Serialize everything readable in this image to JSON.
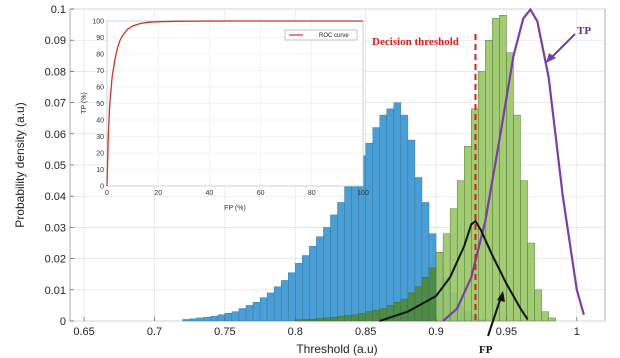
{
  "chart_data": {
    "type": "bar",
    "title": "",
    "xlabel": "Threshold (a.u)",
    "ylabel": "Probability density (a.u)",
    "xlim": [
      0.64,
      1.02
    ],
    "ylim": [
      0,
      0.1
    ],
    "x_ticks": [
      "0.65",
      "0.7",
      "0.75",
      "0.8",
      "0.85",
      "0.9",
      "0.95",
      "1"
    ],
    "y_ticks": [
      "0",
      "0.01",
      "0.02",
      "0.03",
      "0.04",
      "0.05",
      "0.06",
      "0.07",
      "0.08",
      "0.09",
      "0.1"
    ],
    "grid": true,
    "bin_width": 0.005,
    "colors": {
      "blue_hist": "#4a9ed6",
      "green_hist": "#9bc768",
      "overlap": "#4e8a3e",
      "black_curve": "#111111",
      "purple_curve": "#7a3fa6",
      "threshold": "#d81e1e",
      "roc": "#c0392b"
    },
    "series": [
      {
        "bins_start": 0.72,
        "values": [
          0.0005,
          0.0007,
          0.001,
          0.0012,
          0.0015,
          0.002,
          0.0025,
          0.003,
          0.004,
          0.005,
          0.006,
          0.0075,
          0.009,
          0.011,
          0.013,
          0.0155,
          0.0185,
          0.021,
          0.024,
          0.027,
          0.03,
          0.034,
          0.038,
          0.043,
          0.048,
          0.053,
          0.057,
          0.062,
          0.066,
          0.068,
          0.07,
          0.066,
          0.058,
          0.046,
          0.038,
          0.028,
          0.022,
          0.014,
          0.009,
          0.005,
          0.003,
          0.0015,
          0.0005
        ]
      },
      {
        "bins_start": 0.8,
        "values": [
          0.0004,
          0.0005,
          0.0006,
          0.0008,
          0.001,
          0.0012,
          0.0015,
          0.0018,
          0.002,
          0.0025,
          0.003,
          0.0035,
          0.004,
          0.005,
          0.006,
          0.007,
          0.009,
          0.011,
          0.014,
          0.017,
          0.022,
          0.028,
          0.036,
          0.045,
          0.056,
          0.068,
          0.08,
          0.09,
          0.097,
          0.098,
          0.086,
          0.066,
          0.045,
          0.025,
          0.01,
          0.003,
          0.001
        ]
      }
    ],
    "black_curve": {
      "x": [
        0.86,
        0.88,
        0.9,
        0.91,
        0.92,
        0.925,
        0.928,
        0.932,
        0.94,
        0.95,
        0.96,
        0.965
      ],
      "y": [
        0.0,
        0.003,
        0.008,
        0.014,
        0.024,
        0.031,
        0.032,
        0.029,
        0.021,
        0.012,
        0.004,
        0.0005
      ]
    },
    "purple_curve": {
      "x": [
        0.905,
        0.915,
        0.925,
        0.935,
        0.945,
        0.955,
        0.962,
        0.967,
        0.972,
        0.98,
        0.99,
        1.0,
        1.005
      ],
      "y": [
        0.0,
        0.004,
        0.014,
        0.032,
        0.058,
        0.085,
        0.097,
        0.0998,
        0.096,
        0.078,
        0.04,
        0.01,
        0.002
      ]
    },
    "threshold_x": 0.928,
    "annotations": {
      "decision_threshold": "Decision threshold",
      "tp": "TP",
      "fp": "FP"
    },
    "inset": {
      "type": "line",
      "xlabel": "FP (%)",
      "ylabel": "TP (%)",
      "xlim": [
        0,
        100
      ],
      "ylim": [
        0,
        100
      ],
      "x_ticks": [
        "0",
        "20",
        "40",
        "60",
        "80",
        "100"
      ],
      "y_ticks": [
        "0",
        "10",
        "20",
        "30",
        "40",
        "50",
        "60",
        "70",
        "80",
        "90",
        "100"
      ],
      "legend": "ROC curve",
      "x": [
        0,
        0.5,
        1,
        2,
        3,
        4,
        5,
        6,
        8,
        10,
        13,
        16,
        20,
        30,
        50,
        100
      ],
      "y": [
        0,
        30,
        48,
        66,
        76,
        83,
        88,
        91,
        95,
        97,
        98.5,
        99.2,
        99.6,
        99.9,
        100,
        100
      ]
    }
  }
}
